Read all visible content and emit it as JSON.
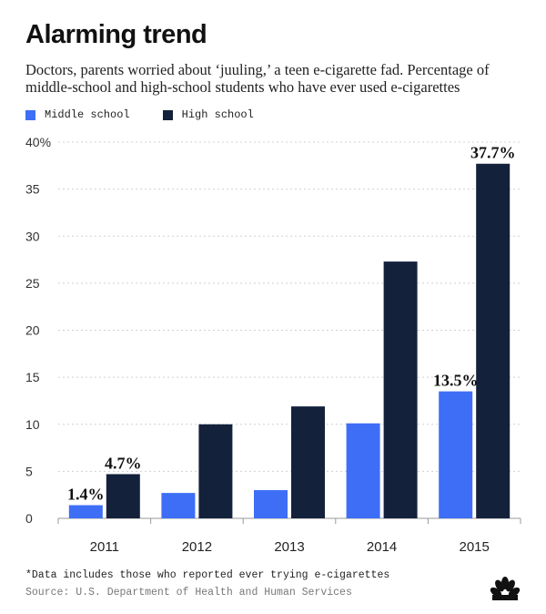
{
  "title": "Alarming trend",
  "subtitle": "Doctors, parents worried about ‘juuling,’ a teen e-cigarette fad. Percentage of middle-school and high-school students who have ever used e-cigarettes",
  "legend": [
    {
      "label": "Middle school",
      "color": "#3d6ef5"
    },
    {
      "label": "High school",
      "color": "#13213b"
    }
  ],
  "footnote": "*Data includes those who reported ever trying e-cigarettes",
  "source": "Source: U.S. Department of Health and Human Services",
  "logo_icon": "peacock-logo-icon",
  "chart_data": {
    "type": "bar",
    "categories": [
      "2011",
      "2012",
      "2013",
      "2014",
      "2015"
    ],
    "series": [
      {
        "name": "Middle school",
        "color": "#3d6ef5",
        "values": [
          1.4,
          2.7,
          3.0,
          10.1,
          13.5
        ]
      },
      {
        "name": "High school",
        "color": "#13213b",
        "values": [
          4.7,
          10.0,
          11.9,
          27.3,
          37.7
        ]
      }
    ],
    "ylim": [
      0,
      40
    ],
    "yticks": [
      0,
      5,
      10,
      15,
      20,
      25,
      30,
      35,
      40
    ],
    "ytick_labels": [
      "0",
      "5",
      "10",
      "15",
      "20",
      "25",
      "30",
      "35",
      "40%"
    ],
    "grid": true,
    "annotations": [
      {
        "series": 0,
        "index": 0,
        "text": "1.4%"
      },
      {
        "series": 1,
        "index": 0,
        "text": "4.7%"
      },
      {
        "series": 0,
        "index": 4,
        "text": "13.5%"
      },
      {
        "series": 1,
        "index": 4,
        "text": "37.7%"
      }
    ]
  }
}
